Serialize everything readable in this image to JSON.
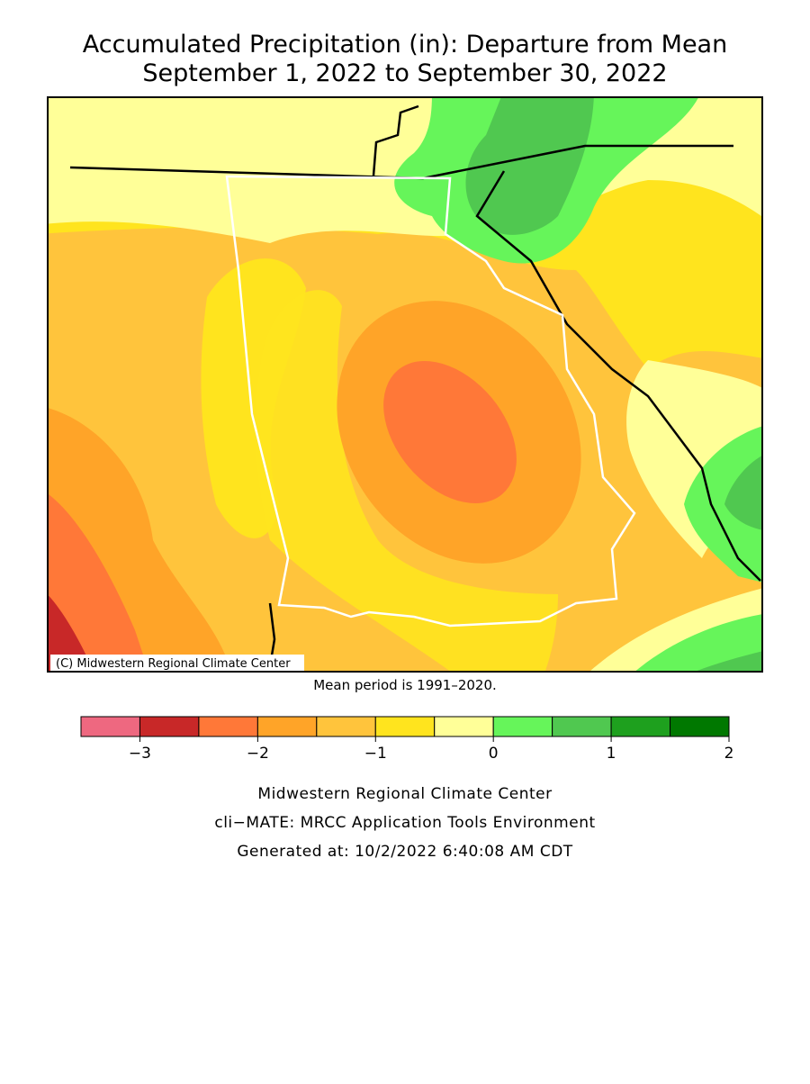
{
  "map": {
    "title": [
      "Accumulated Precipitation (in): Departure from Mean",
      "September 1, 2022 to September 30, 2022"
    ],
    "copyright": "(C) Midwestern Regional Climate Center",
    "note": "Mean period is 1991–2020.",
    "legend": {
      "bins": [
        -3.5,
        -3,
        -2.5,
        -2,
        -1.5,
        -1,
        -0.5,
        0,
        0.5,
        1,
        1.5,
        2
      ],
      "colors": [
        "#ee6880",
        "#c82828",
        "#ff7838",
        "#ffa428",
        "#ffc43c",
        "#ffe41e",
        "#ffff98",
        "#66f55a",
        "#50c850",
        "#1ea01e",
        "#007800"
      ],
      "ticks": [
        {
          "value": -3,
          "label": "−3"
        },
        {
          "value": -2,
          "label": "−2"
        },
        {
          "value": -1,
          "label": "−1"
        },
        0,
        1,
        2
      ]
    },
    "footer": [
      "Midwestern Regional Climate Center",
      "cli−MATE: MRCC Application Tools Environment",
      "Generated at: 10/2/2022 6:40:08 AM CDT"
    ]
  }
}
